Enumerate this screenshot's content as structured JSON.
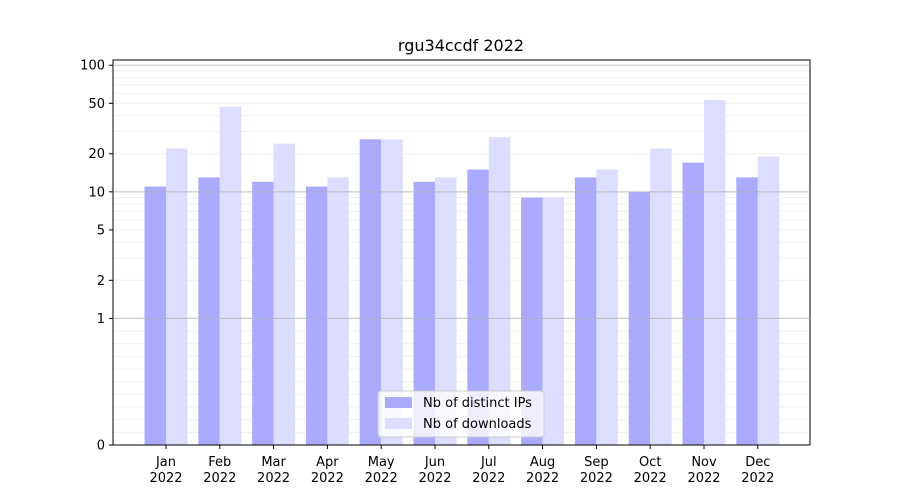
{
  "chart_data": {
    "type": "bar",
    "title": "rgu34ccdf 2022",
    "xlabel": "",
    "ylabel": "",
    "y_scale": "symlog",
    "ylim": [
      0,
      110
    ],
    "grid": "horizontal",
    "legend_position": "bottom-center",
    "categories": [
      [
        "Jan",
        "2022"
      ],
      [
        "Feb",
        "2022"
      ],
      [
        "Mar",
        "2022"
      ],
      [
        "Apr",
        "2022"
      ],
      [
        "May",
        "2022"
      ],
      [
        "Jun",
        "2022"
      ],
      [
        "Jul",
        "2022"
      ],
      [
        "Aug",
        "2022"
      ],
      [
        "Sep",
        "2022"
      ],
      [
        "Oct",
        "2022"
      ],
      [
        "Nov",
        "2022"
      ],
      [
        "Dec",
        "2022"
      ]
    ],
    "y_ticks": [
      0,
      1,
      2,
      5,
      10,
      20,
      50,
      100
    ],
    "series": [
      {
        "name": "Nb of distinct IPs",
        "color": "#aaaaff",
        "values": [
          11,
          13,
          12,
          11,
          26,
          12,
          15,
          9,
          13,
          10,
          17,
          13
        ]
      },
      {
        "name": "Nb of downloads",
        "color": "#ddddff",
        "values": [
          22,
          47,
          24,
          13,
          26,
          13,
          27,
          9,
          15,
          22,
          53,
          19
        ]
      }
    ]
  }
}
